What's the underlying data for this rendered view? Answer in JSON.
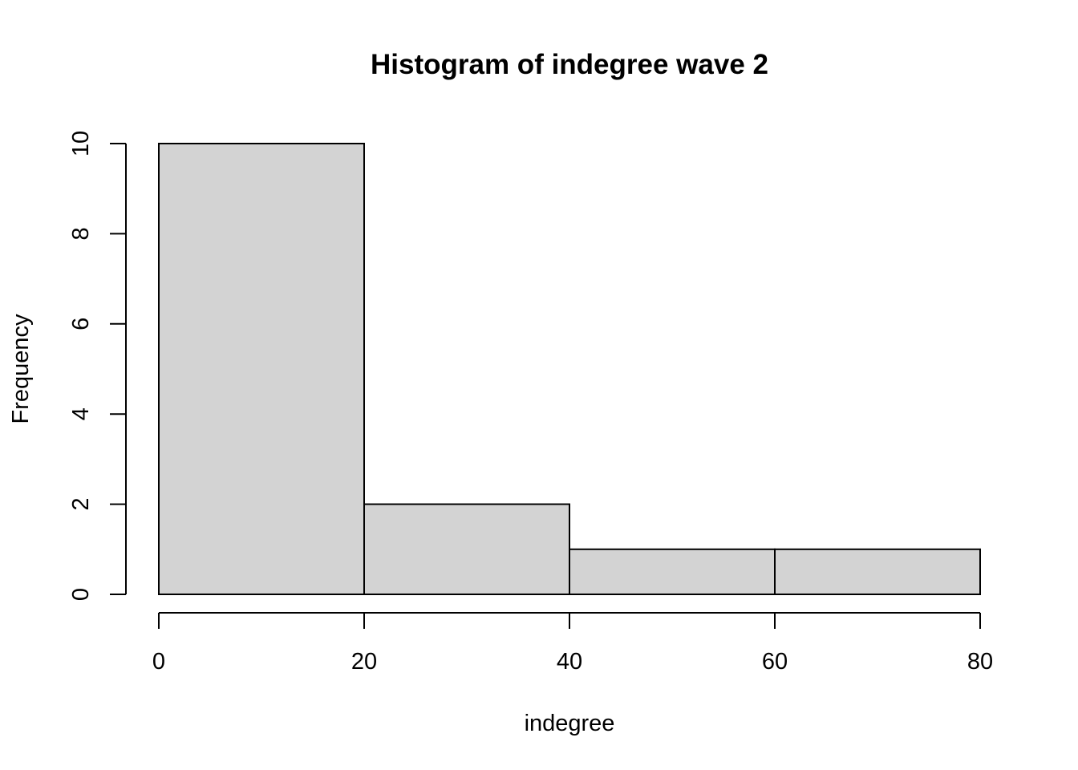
{
  "chart_data": {
    "type": "bar",
    "title": "Histogram of indegree wave 2",
    "xlabel": "indegree",
    "ylabel": "Frequency",
    "bins": [
      {
        "from": 0,
        "to": 20,
        "count": 10
      },
      {
        "from": 20,
        "to": 40,
        "count": 2
      },
      {
        "from": 40,
        "to": 60,
        "count": 1
      },
      {
        "from": 60,
        "to": 80,
        "count": 1
      }
    ],
    "xlim": [
      0,
      80
    ],
    "ylim": [
      0,
      10
    ],
    "x_ticks": [
      "0",
      "20",
      "40",
      "60",
      "80"
    ],
    "y_ticks": [
      "0",
      "2",
      "4",
      "6",
      "8",
      "10"
    ],
    "bar_fill": "#d3d3d3",
    "bar_stroke": "#000000",
    "grid": false,
    "legend": "none"
  }
}
